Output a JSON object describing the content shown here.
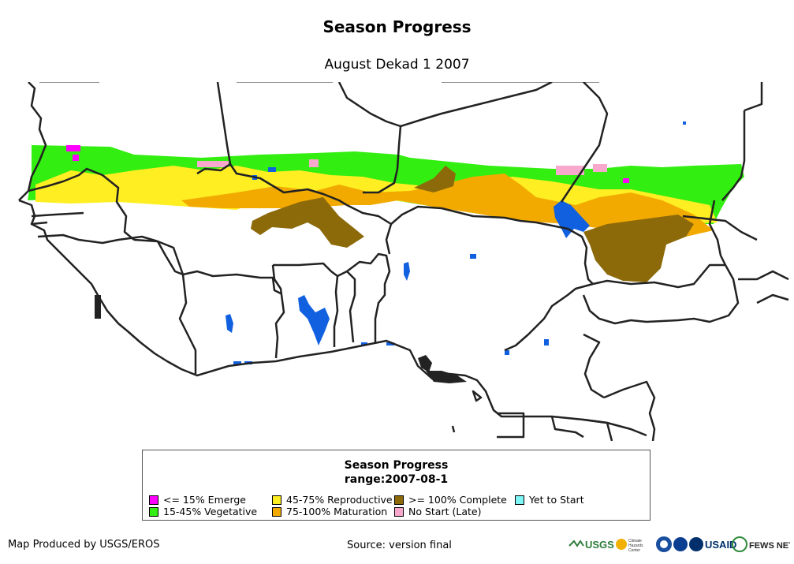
{
  "map": {
    "title": "Season Progress",
    "subtitle": "August Dekad 1 2007"
  },
  "legend": {
    "title_line1": "Season Progress",
    "title_line2": "range:2007-08-1",
    "items": [
      {
        "label": "<= 15% Emerge",
        "color": "#ff00ff"
      },
      {
        "label": "15-45% Vegetative",
        "color": "#33ee11"
      },
      {
        "label": "45-75% Reproductive",
        "color": "#ffee22"
      },
      {
        "label": "75-100% Maturation",
        "color": "#f2aa00"
      },
      {
        "label": ">= 100% Complete",
        "color": "#8c6a0a"
      },
      {
        "label": "No Start (Late)",
        "color": "#f7a8cc"
      },
      {
        "label": "Yet to Start",
        "color": "#7ff6f6"
      }
    ]
  },
  "footer": {
    "credit": "Map Produced by USGS/EROS",
    "source": "Source: version final"
  },
  "logos": {
    "usgs": "USGS",
    "usaid": "USAID",
    "fewsnet": "FEWS NET",
    "chc": "Climate Hazards Center"
  },
  "colors": {
    "water": "#1060e0",
    "border": "#222222"
  }
}
